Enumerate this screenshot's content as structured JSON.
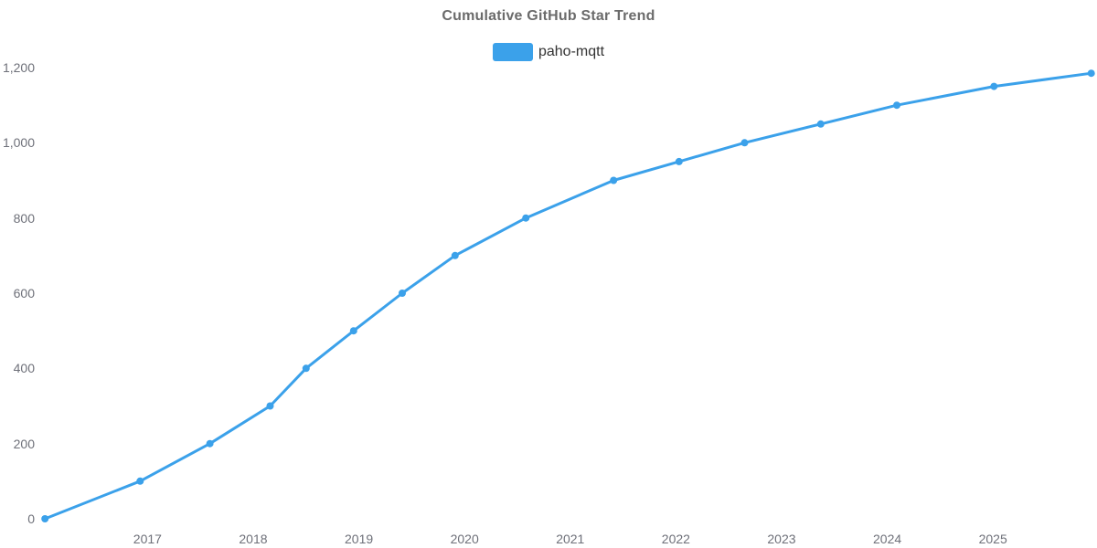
{
  "colors": {
    "background": "#ffffff",
    "title_text": "#6b6b6b",
    "axis_label_text": "#6e7079",
    "legend_text": "#333333",
    "series_blue": "#3ba1ea"
  },
  "chart_data": {
    "type": "line",
    "title": "Cumulative GitHub Star Trend",
    "xlabel": "",
    "ylabel": "",
    "legend": {
      "position": "top",
      "entries": [
        "paho-mqtt"
      ]
    },
    "grid": false,
    "axis_lines": false,
    "x_ticks": [
      2017,
      2018,
      2019,
      2020,
      2021,
      2022,
      2023,
      2024,
      2025
    ],
    "x_domain": [
      2015.95,
      2025.95
    ],
    "y_ticks": [
      0,
      200,
      400,
      600,
      800,
      1000,
      1200
    ],
    "ylim": [
      0,
      1200
    ],
    "series": [
      {
        "name": "paho-mqtt",
        "color": "#3ba1ea",
        "marker": "circle",
        "line_width": 3,
        "marker_radius": 4,
        "points": [
          [
            2016.03,
            0
          ],
          [
            2016.93,
            100
          ],
          [
            2017.59,
            200
          ],
          [
            2018.16,
            300
          ],
          [
            2018.5,
            400
          ],
          [
            2018.95,
            500
          ],
          [
            2019.41,
            600
          ],
          [
            2019.91,
            700
          ],
          [
            2020.58,
            800
          ],
          [
            2021.41,
            900
          ],
          [
            2022.03,
            950
          ],
          [
            2022.65,
            1000
          ],
          [
            2023.37,
            1050
          ],
          [
            2024.09,
            1100
          ],
          [
            2025.01,
            1150
          ],
          [
            2025.93,
            1185
          ]
        ]
      }
    ]
  }
}
